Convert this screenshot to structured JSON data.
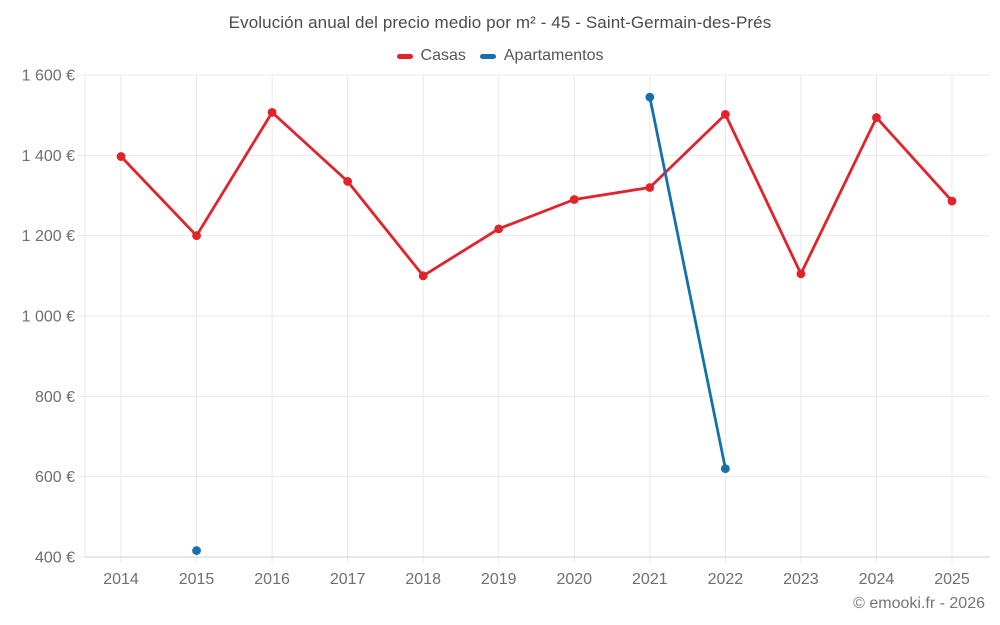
{
  "page": {
    "title": "Evolución anual del precio medio por m² - 45 - Saint-Germain-des-Prés",
    "copyright": "© emooki.fr - 2026"
  },
  "legend": {
    "items": [
      {
        "label": "Casas",
        "color": "#e1232b"
      },
      {
        "label": "Apartamentos",
        "color": "#1571ab"
      }
    ]
  },
  "chart_data": {
    "type": "line",
    "title": "Evolución anual del precio medio por m² - 45 - Saint-Germain-des-Prés",
    "categories": [
      "2014",
      "2015",
      "2016",
      "2017",
      "2018",
      "2019",
      "2020",
      "2021",
      "2022",
      "2023",
      "2024",
      "2025"
    ],
    "series": [
      {
        "name": "Casas",
        "color": "#e1232b",
        "values": [
          1397,
          1200,
          1507,
          1335,
          1100,
          1217,
          1290,
          1320,
          1502,
          1105,
          1494,
          1286
        ]
      },
      {
        "name": "Apartamentos",
        "color": "#1571ab",
        "values": [
          null,
          416,
          null,
          null,
          null,
          null,
          null,
          1545,
          620,
          null,
          null,
          null
        ]
      }
    ],
    "xlabel": "",
    "ylabel": "",
    "ylim": [
      400,
      1600
    ],
    "y_axis": {
      "min": 400,
      "max": 1600,
      "step": 200,
      "unit": "€",
      "tick_labels": [
        "400 €",
        "600 €",
        "800 €",
        "1 000 €",
        "1 200 €",
        "1 400 €",
        "1 600 €"
      ]
    },
    "grid": true,
    "legend_position": "top",
    "annotations": []
  },
  "style": {
    "gridline_color": "#e9e9e9",
    "axis_line_color": "#cfcfcf",
    "tick_label_color": "#6f6f6f",
    "title_color": "#4b4b4b"
  }
}
